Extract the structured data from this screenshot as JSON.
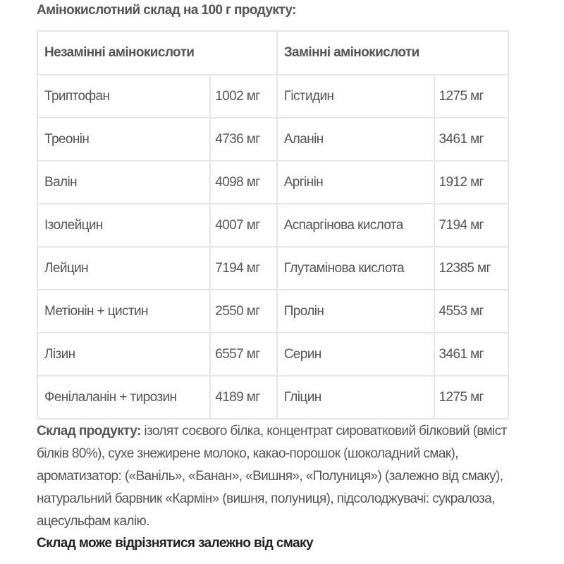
{
  "title": "Амінокислотний склад на 100 г продукту:",
  "table": {
    "headers": [
      "Незамінні амінокислоти",
      "Замінні амінокислоти"
    ],
    "rows": [
      [
        "Триптофан",
        "1002 мг",
        "Гістидин",
        "1275 мг"
      ],
      [
        "Треонін",
        "4736 мг",
        "Аланін",
        "3461 мг"
      ],
      [
        "Валін",
        "4098 мг",
        "Аргінін",
        "1912 мг"
      ],
      [
        "Ізолейцин",
        "4007 мг",
        "Аспаргінова кислота",
        "7194 мг"
      ],
      [
        "Лейцин",
        "7194 мг",
        "Глутамінова кислота",
        "12385 мг"
      ],
      [
        "Метіонін + цистин",
        "2550 мг",
        "Пролін",
        "4553 мг"
      ],
      [
        "Лізин",
        "6557 мг",
        "Серин",
        "3461 мг"
      ],
      [
        "Фенілаланін + тирозин",
        "4189 мг",
        "Гліцин",
        "1275 мг"
      ]
    ]
  },
  "composition": {
    "label": "Склад продукту:",
    "text": " ізолят соєвого білка, концентрат сироватковий білковий (вміст білків 80%), сухе знежирене молоко, какао-порошок (шоколадний смак), ароматизатор: («Ваніль», «Банан», «Вишня», «Полуниця») (залежно від смаку), натуральний барвник «Кармін» (вишня, полуниця), підсолоджувачі: сукралоза, ацесульфам калію."
  },
  "note": "Склад може відрізнятися залежно від смаку"
}
